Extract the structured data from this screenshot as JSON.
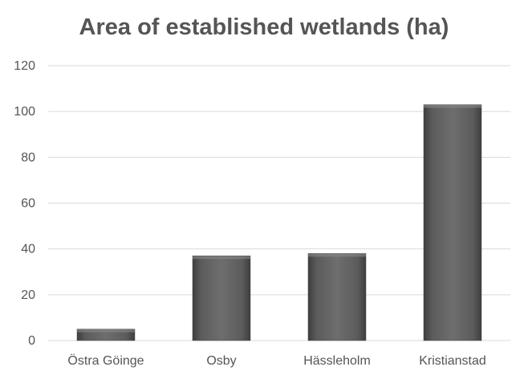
{
  "chart_data": {
    "type": "bar",
    "title": "Area of established wetlands (ha)",
    "xlabel": "",
    "ylabel": "",
    "categories": [
      "Östra Göinge",
      "Osby",
      "Hässleholm",
      "Kristianstad"
    ],
    "values": [
      5,
      37,
      38,
      103
    ],
    "ylim": [
      0,
      120
    ],
    "yticks": [
      0,
      20,
      40,
      60,
      80,
      100,
      120
    ],
    "grid": true,
    "legend": "none",
    "bar_color": "#5a5a5a"
  }
}
